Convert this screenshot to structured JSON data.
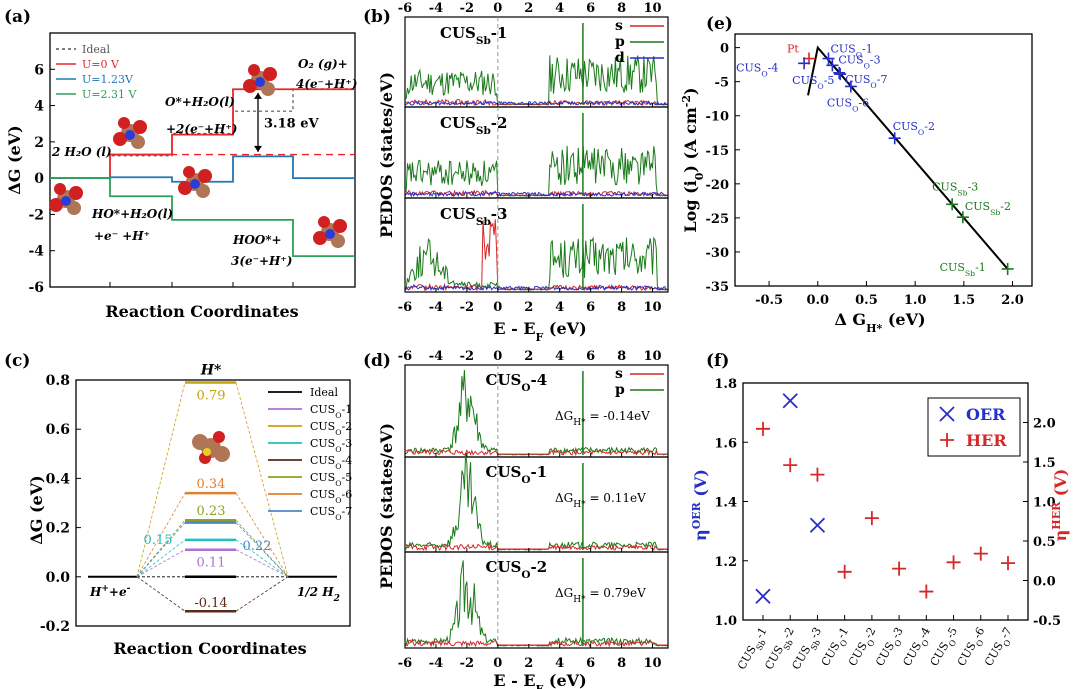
{
  "chart_data": [
    {
      "panel": "(a)",
      "type": "line",
      "xlabel": "Reaction Coordinates",
      "ylabel": "ΔG (eV)",
      "ylim": [
        -6,
        8
      ],
      "yticks": [
        -6,
        -4,
        -2,
        0,
        2,
        4,
        6
      ],
      "legend_position": "top-left",
      "series": [
        {
          "name": "Ideal",
          "color": "#555555",
          "dash": true,
          "values": [
            0,
            1.23,
            2.46,
            3.69,
            4.92
          ]
        },
        {
          "name": "U=0 V",
          "color": "#e8262b",
          "values": [
            0,
            1.3,
            2.4,
            4.9,
            4.9
          ]
        },
        {
          "name": "U=1.23V",
          "color": "#1f78b4",
          "values": [
            0,
            0.05,
            -0.2,
            1.2,
            0
          ]
        },
        {
          "name": "U=2.31 V",
          "color": "#2ca05a",
          "values": [
            0,
            -1.0,
            -2.3,
            -2.3,
            -4.3
          ]
        }
      ],
      "annotations": [
        "O₂ (g)+",
        "4(e⁻+H⁺)",
        "O*+H₂O(l)",
        "+2(e⁻+H⁺)",
        "3.18 eV",
        "2 H₂O (l)",
        "HO*+H₂O(l)",
        "+e⁻ +H⁺",
        "HOO*+",
        "3(e⁻+H⁺)"
      ],
      "gap_eV": 3.18,
      "reference_line": 1.3
    },
    {
      "panel": "(b)",
      "type": "line",
      "xlabel": "E - E_F (eV)",
      "ylabel": "PEDOS (states/eV)",
      "xlim": [
        -6,
        11
      ],
      "xticks": [
        -6,
        -4,
        -2,
        0,
        2,
        4,
        6,
        8,
        10
      ],
      "legend": [
        "s",
        "p",
        "d"
      ],
      "legend_colors": [
        "#d62728",
        "#1a7a1a",
        "#2430c8"
      ],
      "subpanels": [
        "CUS_Sb-1",
        "CUS_Sb-2",
        "CUS_Sb-3"
      ]
    },
    {
      "panel": "(c)",
      "type": "line",
      "xlabel": "Reaction Coordinates",
      "ylabel": "ΔG (eV)",
      "ylim": [
        -0.2,
        0.8
      ],
      "yticks": [
        -0.2,
        0.0,
        0.2,
        0.4,
        0.6,
        0.8
      ],
      "top_label": "H*",
      "left_label": "H⁺+e⁻",
      "right_label": "1/2 H₂",
      "series": [
        {
          "name": "Ideal",
          "color": "#000000",
          "value": 0.0
        },
        {
          "name": "CUS_O-1",
          "color": "#b070d0",
          "value": 0.11
        },
        {
          "name": "CUS_O-2",
          "color": "#c8a010",
          "value": 0.79
        },
        {
          "name": "CUS_O-3",
          "color": "#20c0c0",
          "value": 0.15
        },
        {
          "name": "CUS_O-4",
          "color": "#5a2a1a",
          "value": -0.14
        },
        {
          "name": "CUS_O-5",
          "color": "#90a020",
          "value": 0.23
        },
        {
          "name": "CUS_O-6",
          "color": "#e08030",
          "value": 0.34
        },
        {
          "name": "CUS_O-7",
          "color": "#4a88c8",
          "value": 0.22
        }
      ],
      "value_labels": [
        "0.79",
        "0.34",
        "0.23",
        "0.15",
        "0.22",
        "0.11",
        "-0.14"
      ]
    },
    {
      "panel": "(d)",
      "type": "line",
      "xlabel": "E - E_F (eV)",
      "ylabel": "PEDOS (states/eV)",
      "xlim": [
        -6,
        11
      ],
      "xticks": [
        -6,
        -4,
        -2,
        0,
        2,
        4,
        6,
        8,
        10
      ],
      "legend": [
        "s",
        "p"
      ],
      "legend_colors": [
        "#d62728",
        "#1a7a1a"
      ],
      "subpanels": [
        {
          "title": "CUS_O-4",
          "dG": "ΔG_H* = -0.14eV"
        },
        {
          "title": "CUS_O-1",
          "dG": "ΔG_H* = 0.11eV"
        },
        {
          "title": "CUS_O-2",
          "dG": "ΔG_H* = 0.79eV"
        }
      ]
    },
    {
      "panel": "(e)",
      "type": "scatter",
      "xlabel": "Δ G_H* (eV)",
      "ylabel": "Log (i₀) (A cm⁻²)",
      "xlim": [
        -0.85,
        2.2
      ],
      "ylim": [
        -35,
        2
      ],
      "xticks": [
        -0.5,
        0.0,
        0.5,
        1.0,
        1.5,
        2.0
      ],
      "yticks": [
        0,
        -5,
        -10,
        -15,
        -20,
        -25,
        -30,
        -35
      ],
      "volcano": [
        [
          -0.1,
          -7.0
        ],
        [
          0.0,
          0.0
        ],
        [
          1.95,
          -32.5
        ]
      ],
      "points": [
        {
          "label": "Pt",
          "x": -0.09,
          "y": -1.6,
          "color": "#d62728"
        },
        {
          "label": "CUS_O-4",
          "x": -0.14,
          "y": -2.3,
          "color": "#2430c8"
        },
        {
          "label": "CUS_O-1",
          "x": 0.11,
          "y": -1.6,
          "color": "#2430c8"
        },
        {
          "label": "CUS_O-3",
          "x": 0.15,
          "y": -2.6,
          "color": "#2430c8"
        },
        {
          "label": "CUS_O-7",
          "x": 0.22,
          "y": -3.7,
          "color": "#2430c8"
        },
        {
          "label": "CUS_O-5",
          "x": 0.23,
          "y": -3.9,
          "color": "#2430c8"
        },
        {
          "label": "CUS_O-6",
          "x": 0.34,
          "y": -5.7,
          "color": "#2430c8"
        },
        {
          "label": "CUS_O-2",
          "x": 0.79,
          "y": -13.3,
          "color": "#2430c8"
        },
        {
          "label": "CUS_Sb-3",
          "x": 1.38,
          "y": -23.0,
          "color": "#1a7a1a"
        },
        {
          "label": "CUS_Sb-2",
          "x": 1.49,
          "y": -24.9,
          "color": "#1a7a1a"
        },
        {
          "label": "CUS_Sb-1",
          "x": 1.95,
          "y": -32.5,
          "color": "#1a7a1a"
        }
      ]
    },
    {
      "panel": "(f)",
      "type": "scatter",
      "ylabel_left": "η^OER (V)",
      "ylabel_right": "η^HER (V)",
      "ylim_left": [
        1.0,
        1.8
      ],
      "ylim_right": [
        -0.5,
        2.5
      ],
      "yticks_left": [
        "1.0",
        "1.2",
        "1.4",
        "1.6",
        "1.8"
      ],
      "yticks_right": [
        "-0.5",
        "0.0",
        "0.5",
        "1.0",
        "1.5",
        "2.0"
      ],
      "legend_position": "top-right",
      "categories": [
        "CUS_Sb-1",
        "CUS_Sb-2",
        "CUS_Sb-3",
        "CUS_O-1",
        "CUS_O-2",
        "CUS_O-3",
        "CUS_O-4",
        "CUS_O-5",
        "CUS_O-6",
        "CUS_O-7"
      ],
      "series": [
        {
          "name": "OER",
          "marker": "x",
          "color": "#2430c8",
          "axis": "left",
          "values": [
            1.08,
            1.74,
            1.32,
            null,
            null,
            null,
            null,
            null,
            null,
            null
          ]
        },
        {
          "name": "HER",
          "marker": "+",
          "color": "#d62728",
          "axis": "right",
          "values": [
            1.92,
            1.46,
            1.34,
            0.11,
            0.79,
            0.15,
            -0.14,
            0.23,
            0.34,
            0.22
          ]
        }
      ]
    }
  ],
  "labels": {
    "a": "(a)",
    "b": "(b)",
    "c": "(c)",
    "d": "(d)",
    "e": "(e)",
    "f": "(f)"
  },
  "colors": {
    "red": "#e8262b",
    "blue": "#1f78b4",
    "green": "#2ca05a",
    "navy": "#2430c8",
    "dkgreen": "#1a7a1a"
  }
}
